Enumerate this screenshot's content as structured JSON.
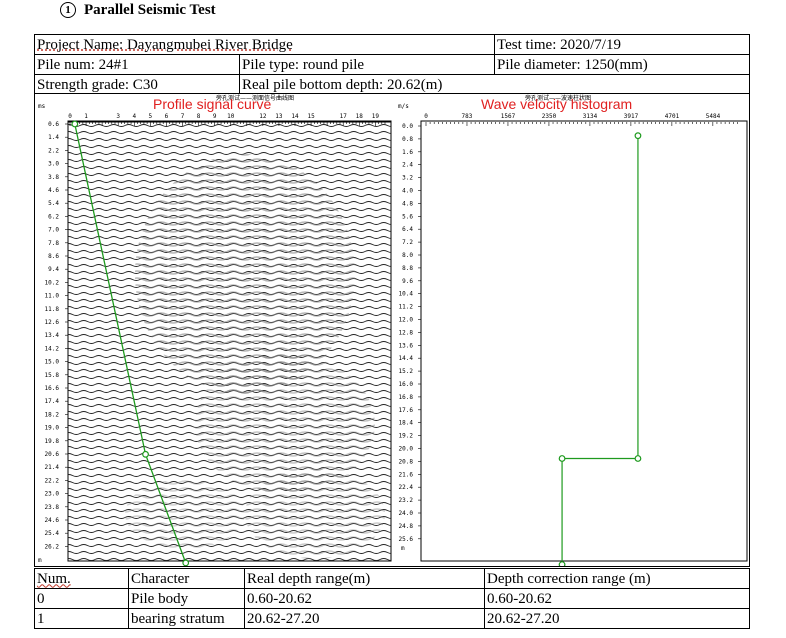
{
  "title": {
    "marker": "①",
    "text": "Parallel Seismic Test"
  },
  "info": {
    "project_name": "Project Name: Dayangmubei River Bridge",
    "test_time": "Test time: 2020/7/19",
    "pile_num": "Pile num: 24#1",
    "pile_type": "Pile type: round pile",
    "pile_diameter": "Pile diameter: 1250(mm)",
    "strength_grade": "Strength grade: C30",
    "real_bottom_depth": "Real pile bottom depth: 20.62(m)"
  },
  "left_chart": {
    "overlay_title": "Profile signal curve",
    "cn_title": "旁孔测试——测面信号曲线图",
    "unit_top": "ms",
    "unit_bottom": "m",
    "x_ticks": [
      "0",
      "1",
      "3",
      "4",
      "5",
      "6",
      "7",
      "8",
      "9",
      "10",
      "12",
      "13",
      "14",
      "15",
      "17",
      "18",
      "19"
    ],
    "y_ticks": [
      "0.6",
      "1.4",
      "2.2",
      "3.0",
      "3.8",
      "4.6",
      "5.4",
      "6.2",
      "7.0",
      "7.8",
      "8.6",
      "9.4",
      "10.2",
      "11.0",
      "11.8",
      "12.6",
      "13.4",
      "14.2",
      "15.0",
      "15.8",
      "16.6",
      "17.4",
      "18.2",
      "19.0",
      "19.8",
      "20.6",
      "21.4",
      "22.2",
      "23.0",
      "23.8",
      "24.6",
      "25.4",
      "26.2"
    ],
    "first_arrival": [
      {
        "depth": 0.6,
        "time": 0.3
      },
      {
        "depth": 20.62,
        "time": 4.7
      },
      {
        "depth": 27.2,
        "time": 7.2
      }
    ],
    "line_color": "#1e9a1e"
  },
  "right_chart": {
    "overlay_title": "Wave velocity histogram",
    "cn_title": "旁孔测试——波速柱状图",
    "unit_top": "m/s",
    "unit_bottom": "m",
    "x_ticks": [
      "0",
      "783",
      "1567",
      "2350",
      "3134",
      "3917",
      "4701",
      "5484"
    ],
    "y_ticks": [
      "0.0",
      "0.8",
      "1.6",
      "2.4",
      "3.2",
      "4.0",
      "4.8",
      "5.6",
      "6.4",
      "7.2",
      "8.0",
      "8.8",
      "9.6",
      "10.4",
      "11.2",
      "12.0",
      "12.8",
      "13.6",
      "14.4",
      "15.2",
      "16.0",
      "16.8",
      "17.6",
      "18.4",
      "19.2",
      "20.0",
      "20.8",
      "21.6",
      "22.4",
      "23.2",
      "24.0",
      "24.8",
      "25.6"
    ],
    "segments": [
      {
        "from": 0.6,
        "to": 20.62,
        "velocity": 4050
      },
      {
        "from": 20.62,
        "to": 27.2,
        "velocity": 2600
      }
    ],
    "line_color": "#1e9a1e"
  },
  "results": {
    "headers": [
      "Num.",
      "Character",
      "Real depth range(m)",
      "Depth correction range (m)"
    ],
    "rows": [
      [
        "0",
        "Pile body",
        "0.60-20.62",
        "0.60-20.62"
      ],
      [
        "1",
        "bearing stratum",
        "20.62-27.20",
        "20.62-27.20"
      ]
    ]
  }
}
